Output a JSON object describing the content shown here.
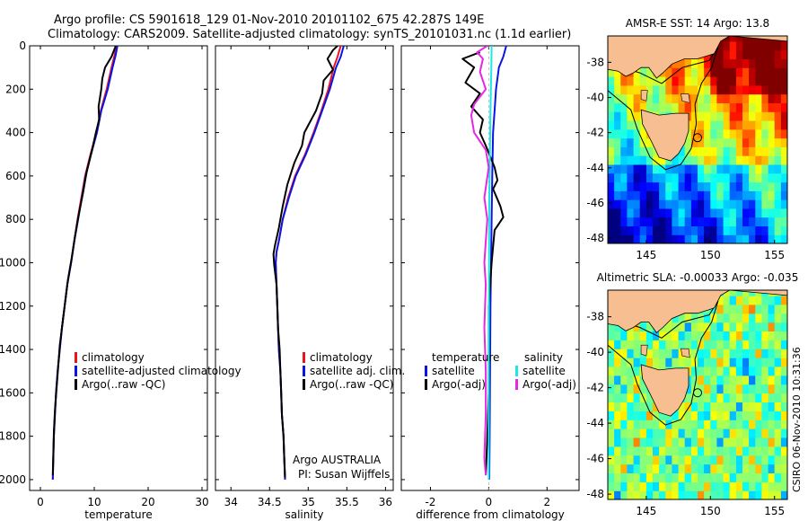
{
  "header": {
    "line1": "Argo profile: CS 5901618_129 01-Nov-2010 20101102_675 42.287S 149E",
    "line2": "Climatology: CARS2009. Satellite-adjusted climatology: synTS_20101031.nc (1.1d earlier)"
  },
  "credits": {
    "program": "Argo AUSTRALIA",
    "pi": "PI: Susan Wijffels",
    "stamp": "CSIRO 06-Nov-2010 10:31:36"
  },
  "colors": {
    "black": "#000000",
    "red": "#e8141e",
    "blue": "#0a14e6",
    "cyan": "#1ee6e6",
    "magenta": "#e628e6",
    "land": "#f6be91"
  },
  "chart_data": [
    {
      "type": "line",
      "id": "temperature",
      "xlabel": "temperature",
      "ylabel": "",
      "xlim": [
        -2,
        31
      ],
      "ylim": [
        2050,
        0
      ],
      "xticks": [
        0,
        10,
        20,
        30
      ],
      "yticks": [
        0,
        200,
        400,
        600,
        800,
        1000,
        1200,
        1400,
        1600,
        1800,
        2000
      ],
      "legend": [
        "climatology",
        "satellite-adjusted climatology",
        "Argo(..raw -QC)"
      ],
      "series": [
        {
          "name": "climatology",
          "color": "red",
          "points": [
            [
              14,
              0
            ],
            [
              13.8,
              40
            ],
            [
              13.2,
              100
            ],
            [
              12.3,
              200
            ],
            [
              11.2,
              300
            ],
            [
              10.4,
              400
            ],
            [
              9.3,
              500
            ],
            [
              8.3,
              600
            ],
            [
              7.6,
              700
            ],
            [
              6.9,
              800
            ],
            [
              6.3,
              900
            ],
            [
              5.7,
              1000
            ],
            [
              5.0,
              1100
            ],
            [
              4.5,
              1200
            ],
            [
              4.0,
              1300
            ],
            [
              3.6,
              1400
            ],
            [
              3.2,
              1500
            ],
            [
              2.9,
              1600
            ],
            [
              2.7,
              1700
            ],
            [
              2.5,
              1800
            ],
            [
              2.4,
              1900
            ],
            [
              2.3,
              2000
            ]
          ]
        },
        {
          "name": "satellite-adjusted climatology",
          "color": "blue",
          "points": [
            [
              14.3,
              0
            ],
            [
              14.0,
              40
            ],
            [
              13.4,
              100
            ],
            [
              12.5,
              200
            ],
            [
              11.3,
              300
            ],
            [
              10.5,
              400
            ],
            [
              9.4,
              500
            ],
            [
              8.4,
              600
            ],
            [
              7.7,
              700
            ],
            [
              7.0,
              800
            ],
            [
              6.3,
              900
            ],
            [
              5.7,
              1000
            ],
            [
              5.0,
              1100
            ],
            [
              4.5,
              1200
            ],
            [
              4.0,
              1300
            ],
            [
              3.6,
              1400
            ],
            [
              3.2,
              1500
            ],
            [
              2.9,
              1600
            ],
            [
              2.7,
              1700
            ],
            [
              2.5,
              1800
            ],
            [
              2.4,
              1900
            ],
            [
              2.3,
              2000
            ]
          ]
        },
        {
          "name": "Argo(..raw -QC)",
          "color": "black",
          "points": [
            [
              14,
              0
            ],
            [
              13.2,
              50
            ],
            [
              12.0,
              100
            ],
            [
              11.5,
              150
            ],
            [
              11.3,
              200
            ],
            [
              10.8,
              280
            ],
            [
              10.9,
              340
            ],
            [
              10.3,
              400
            ],
            [
              9.6,
              480
            ],
            [
              8.6,
              580
            ],
            [
              7.9,
              680
            ],
            [
              7.1,
              780
            ],
            [
              6.4,
              880
            ],
            [
              5.8,
              980
            ],
            [
              5.1,
              1080
            ],
            [
              4.6,
              1180
            ],
            [
              4.1,
              1280
            ],
            [
              3.6,
              1380
            ],
            [
              3.3,
              1480
            ],
            [
              3.0,
              1580
            ],
            [
              2.7,
              1680
            ],
            [
              2.5,
              1780
            ],
            [
              2.4,
              1880
            ],
            [
              2.3,
              1980
            ]
          ]
        }
      ]
    },
    {
      "type": "line",
      "id": "salinity",
      "xlabel": "salinity",
      "ylabel": "",
      "xlim": [
        33.8,
        36.1
      ],
      "ylim": [
        2050,
        0
      ],
      "xticks": [
        34,
        34.5,
        35,
        35.5,
        36
      ],
      "xtick_labels": [
        "34",
        "34.5",
        "35",
        "35.5",
        "36"
      ],
      "legend": [
        "climatology",
        "satellite adj. clim.",
        "Argo(..raw -QC)"
      ],
      "series": [
        {
          "name": "climatology",
          "color": "red",
          "points": [
            [
              35.42,
              0
            ],
            [
              35.38,
              50
            ],
            [
              35.33,
              100
            ],
            [
              35.26,
              200
            ],
            [
              35.17,
              300
            ],
            [
              35.07,
              400
            ],
            [
              34.96,
              500
            ],
            [
              34.83,
              600
            ],
            [
              34.74,
              700
            ],
            [
              34.67,
              800
            ],
            [
              34.62,
              900
            ],
            [
              34.59,
              950
            ],
            [
              34.58,
              1000
            ],
            [
              34.59,
              1100
            ],
            [
              34.6,
              1200
            ],
            [
              34.61,
              1300
            ],
            [
              34.62,
              1400
            ],
            [
              34.64,
              1500
            ],
            [
              34.65,
              1600
            ],
            [
              34.66,
              1700
            ],
            [
              34.68,
              1800
            ],
            [
              34.69,
              1900
            ],
            [
              34.7,
              2000
            ]
          ]
        },
        {
          "name": "satellite adj. clim.",
          "color": "blue",
          "points": [
            [
              35.46,
              0
            ],
            [
              35.42,
              50
            ],
            [
              35.36,
              100
            ],
            [
              35.28,
              200
            ],
            [
              35.18,
              300
            ],
            [
              35.08,
              400
            ],
            [
              34.97,
              500
            ],
            [
              34.84,
              600
            ],
            [
              34.75,
              700
            ],
            [
              34.67,
              800
            ],
            [
              34.62,
              900
            ],
            [
              34.59,
              950
            ],
            [
              34.58,
              1000
            ],
            [
              34.59,
              1100
            ],
            [
              34.6,
              1200
            ],
            [
              34.61,
              1300
            ],
            [
              34.62,
              1400
            ],
            [
              34.64,
              1500
            ],
            [
              34.65,
              1600
            ],
            [
              34.66,
              1700
            ],
            [
              34.68,
              1800
            ],
            [
              34.69,
              1900
            ],
            [
              34.7,
              2000
            ]
          ]
        },
        {
          "name": "Argo(..raw -QC)",
          "color": "black",
          "points": [
            [
              35.38,
              0
            ],
            [
              35.32,
              20
            ],
            [
              35.25,
              60
            ],
            [
              35.32,
              110
            ],
            [
              35.2,
              160
            ],
            [
              35.18,
              220
            ],
            [
              35.1,
              300
            ],
            [
              34.95,
              400
            ],
            [
              34.92,
              460
            ],
            [
              34.82,
              540
            ],
            [
              34.73,
              640
            ],
            [
              34.67,
              740
            ],
            [
              34.62,
              840
            ],
            [
              34.57,
              920
            ],
            [
              34.55,
              960
            ],
            [
              34.56,
              1010
            ],
            [
              34.59,
              1100
            ],
            [
              34.6,
              1200
            ],
            [
              34.61,
              1300
            ],
            [
              34.63,
              1400
            ],
            [
              34.64,
              1500
            ],
            [
              34.65,
              1600
            ],
            [
              34.66,
              1700
            ],
            [
              34.68,
              1800
            ],
            [
              34.69,
              1900
            ],
            [
              34.7,
              1990
            ]
          ]
        }
      ]
    },
    {
      "type": "line",
      "id": "difference",
      "xlabel": "difference from climatology",
      "ylabel": "",
      "xlim": [
        -3.0,
        3.1
      ],
      "ylim": [
        2050,
        0
      ],
      "xticks": [
        -2,
        0,
        2
      ],
      "legend_groups": [
        {
          "heading": "temperature",
          "entries": [
            "satellite",
            "Argo(-adj)"
          ]
        },
        {
          "heading": "salinity",
          "entries": [
            "satellite",
            "Argo(-adj)"
          ]
        }
      ],
      "series": [
        {
          "name": "temperature satellite",
          "color": "blue",
          "points": [
            [
              0.6,
              0
            ],
            [
              0.5,
              50
            ],
            [
              0.35,
              100
            ],
            [
              0.25,
              200
            ],
            [
              0.2,
              300
            ],
            [
              0.15,
              400
            ],
            [
              0.12,
              600
            ],
            [
              0.1,
              800
            ],
            [
              0.08,
              1000
            ],
            [
              0.06,
              1200
            ],
            [
              0.05,
              1400
            ],
            [
              0.04,
              1600
            ],
            [
              0.03,
              1800
            ],
            [
              0.02,
              2000
            ]
          ]
        },
        {
          "name": "temperature Argo(-adj)",
          "color": "black",
          "points": [
            [
              -0.3,
              30
            ],
            [
              -0.9,
              60
            ],
            [
              -0.5,
              100
            ],
            [
              -0.8,
              170
            ],
            [
              -0.3,
              220
            ],
            [
              -0.6,
              280
            ],
            [
              -0.2,
              340
            ],
            [
              -0.3,
              400
            ],
            [
              -0.1,
              460
            ],
            [
              0.2,
              560
            ],
            [
              0.3,
              620
            ],
            [
              0.15,
              660
            ],
            [
              0.4,
              740
            ],
            [
              0.5,
              790
            ],
            [
              0.2,
              850
            ],
            [
              0.1,
              1000
            ],
            [
              0.0,
              1200
            ],
            [
              0.0,
              1400
            ],
            [
              0.0,
              1600
            ],
            [
              -0.05,
              1800
            ],
            [
              -0.1,
              1980
            ]
          ]
        },
        {
          "name": "salinity satellite",
          "color": "cyan",
          "points": [
            [
              0.1,
              0
            ],
            [
              0.09,
              100
            ],
            [
              0.06,
              300
            ],
            [
              0.04,
              500
            ],
            [
              0.02,
              700
            ],
            [
              0.01,
              1000
            ],
            [
              0.0,
              1400
            ],
            [
              0.0,
              1800
            ],
            [
              0.0,
              2000
            ]
          ]
        },
        {
          "name": "salinity Argo(-adj)",
          "color": "magenta",
          "points": [
            [
              -0.05,
              0
            ],
            [
              -0.4,
              30
            ],
            [
              -0.2,
              60
            ],
            [
              -0.3,
              120
            ],
            [
              -0.1,
              200
            ],
            [
              -0.5,
              270
            ],
            [
              -0.6,
              320
            ],
            [
              -0.5,
              400
            ],
            [
              -0.1,
              480
            ],
            [
              0.0,
              560
            ],
            [
              -0.15,
              700
            ],
            [
              -0.05,
              800
            ],
            [
              -0.1,
              900
            ],
            [
              -0.15,
              1000
            ],
            [
              -0.1,
              1100
            ],
            [
              -0.15,
              1300
            ],
            [
              -0.1,
              1500
            ],
            [
              -0.1,
              1700
            ],
            [
              -0.15,
              1900
            ],
            [
              -0.1,
              1980
            ]
          ]
        }
      ]
    },
    {
      "type": "heatmap",
      "id": "sst-map",
      "title": "AMSR-E SST: 14 Argo: 13.8",
      "xlim": [
        142,
        156
      ],
      "ylim": [
        -48.3,
        -36.5
      ],
      "xticks": [
        145,
        150,
        155
      ],
      "yticks": [
        -38,
        -40,
        -42,
        -44,
        -46,
        -48
      ],
      "float_position": {
        "lon": 149,
        "lat": -42.287
      }
    },
    {
      "type": "heatmap",
      "id": "sla-map",
      "title": "Altimetric SLA: -0.00033 Argo: -0.035",
      "xlim": [
        142,
        156
      ],
      "ylim": [
        -48.3,
        -36.5
      ],
      "xticks": [
        145,
        150,
        155
      ],
      "yticks": [
        -38,
        -40,
        -42,
        -44,
        -46,
        -48
      ],
      "float_position": {
        "lon": 149,
        "lat": -42.287
      }
    }
  ]
}
